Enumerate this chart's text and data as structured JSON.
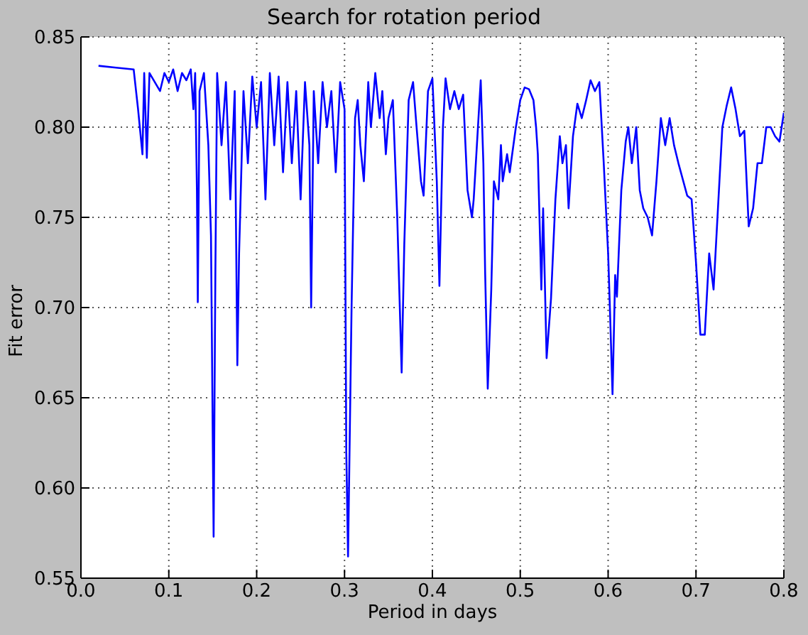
{
  "chart_data": {
    "type": "line",
    "title": "Search for rotation period",
    "xlabel": "Period in days",
    "ylabel": "Fit error",
    "xlim": [
      0,
      0.8
    ],
    "xticks": [
      {
        "value": 0,
        "label": "0.0"
      },
      0.1,
      0.2,
      0.3,
      0.4,
      0.5,
      0.6,
      0.7,
      {
        "value": 0.8,
        "label": "0.8"
      }
    ],
    "ylim": [
      0.55,
      0.85
    ],
    "yticks": [
      0.55,
      {
        "value": 0.6,
        "label": "0.60"
      },
      0.65,
      {
        "value": 0.7,
        "label": "0.70"
      },
      0.75,
      {
        "value": 0.8,
        "label": "0.80"
      },
      0.85
    ],
    "grid": true,
    "line_style": "solid",
    "marker": "none",
    "series": [
      {
        "color": "#0000ff",
        "x": [
          0.02,
          0.04,
          0.06,
          0.065,
          0.07,
          0.072,
          0.075,
          0.078,
          0.09,
          0.095,
          0.1,
          0.105,
          0.11,
          0.115,
          0.12,
          0.125,
          0.128,
          0.13,
          0.132,
          0.133,
          0.135,
          0.14,
          0.145,
          0.148,
          0.151,
          0.153,
          0.155,
          0.16,
          0.165,
          0.17,
          0.175,
          0.178,
          0.18,
          0.185,
          0.19,
          0.195,
          0.2,
          0.205,
          0.21,
          0.215,
          0.22,
          0.225,
          0.23,
          0.235,
          0.24,
          0.245,
          0.25,
          0.255,
          0.26,
          0.262,
          0.265,
          0.27,
          0.275,
          0.28,
          0.285,
          0.29,
          0.295,
          0.3,
          0.302,
          0.304,
          0.308,
          0.312,
          0.315,
          0.318,
          0.322,
          0.327,
          0.33,
          0.335,
          0.34,
          0.343,
          0.347,
          0.35,
          0.355,
          0.36,
          0.365,
          0.368,
          0.373,
          0.378,
          0.382,
          0.387,
          0.39,
          0.395,
          0.4,
          0.405,
          0.408,
          0.412,
          0.415,
          0.42,
          0.425,
          0.43,
          0.435,
          0.44,
          0.445,
          0.447,
          0.455,
          0.458,
          0.46,
          0.463,
          0.467,
          0.47,
          0.475,
          0.478,
          0.48,
          0.485,
          0.488,
          0.495,
          0.5,
          0.505,
          0.51,
          0.515,
          0.518,
          0.52,
          0.524,
          0.526,
          0.53,
          0.535,
          0.54,
          0.545,
          0.548,
          0.552,
          0.555,
          0.56,
          0.565,
          0.57,
          0.575,
          0.58,
          0.585,
          0.59,
          0.595,
          0.6,
          0.602,
          0.605,
          0.608,
          0.61,
          0.615,
          0.62,
          0.623,
          0.627,
          0.632,
          0.636,
          0.64,
          0.645,
          0.65,
          0.655,
          0.66,
          0.665,
          0.67,
          0.675,
          0.68,
          0.69,
          0.695,
          0.7,
          0.705,
          0.71,
          0.715,
          0.72,
          0.73,
          0.735,
          0.74,
          0.745,
          0.75,
          0.755,
          0.76,
          0.765,
          0.77,
          0.775,
          0.78,
          0.785,
          0.79,
          0.795,
          0.8
        ],
        "values": [
          0.834,
          0.833,
          0.832,
          0.81,
          0.785,
          0.83,
          0.783,
          0.83,
          0.82,
          0.83,
          0.825,
          0.832,
          0.82,
          0.83,
          0.826,
          0.832,
          0.81,
          0.83,
          0.765,
          0.703,
          0.82,
          0.83,
          0.79,
          0.74,
          0.573,
          0.72,
          0.83,
          0.79,
          0.825,
          0.76,
          0.82,
          0.668,
          0.73,
          0.82,
          0.78,
          0.828,
          0.8,
          0.825,
          0.76,
          0.83,
          0.79,
          0.828,
          0.775,
          0.825,
          0.78,
          0.82,
          0.76,
          0.825,
          0.79,
          0.7,
          0.82,
          0.78,
          0.825,
          0.8,
          0.82,
          0.775,
          0.825,
          0.81,
          0.62,
          0.562,
          0.7,
          0.805,
          0.815,
          0.79,
          0.77,
          0.825,
          0.8,
          0.83,
          0.805,
          0.82,
          0.785,
          0.805,
          0.815,
          0.75,
          0.664,
          0.735,
          0.815,
          0.825,
          0.8,
          0.77,
          0.762,
          0.82,
          0.827,
          0.77,
          0.712,
          0.8,
          0.827,
          0.81,
          0.82,
          0.81,
          0.818,
          0.765,
          0.75,
          0.76,
          0.826,
          0.78,
          0.72,
          0.655,
          0.71,
          0.77,
          0.76,
          0.79,
          0.77,
          0.785,
          0.775,
          0.8,
          0.815,
          0.822,
          0.821,
          0.815,
          0.8,
          0.785,
          0.71,
          0.755,
          0.672,
          0.705,
          0.76,
          0.795,
          0.78,
          0.79,
          0.755,
          0.795,
          0.813,
          0.805,
          0.815,
          0.826,
          0.82,
          0.825,
          0.78,
          0.73,
          0.7,
          0.652,
          0.718,
          0.706,
          0.765,
          0.792,
          0.8,
          0.78,
          0.8,
          0.765,
          0.755,
          0.75,
          0.74,
          0.77,
          0.805,
          0.79,
          0.805,
          0.79,
          0.78,
          0.762,
          0.76,
          0.725,
          0.685,
          0.685,
          0.73,
          0.71,
          0.8,
          0.812,
          0.822,
          0.81,
          0.795,
          0.798,
          0.745,
          0.755,
          0.78,
          0.78,
          0.8,
          0.8,
          0.795,
          0.792,
          0.808
        ]
      }
    ]
  }
}
